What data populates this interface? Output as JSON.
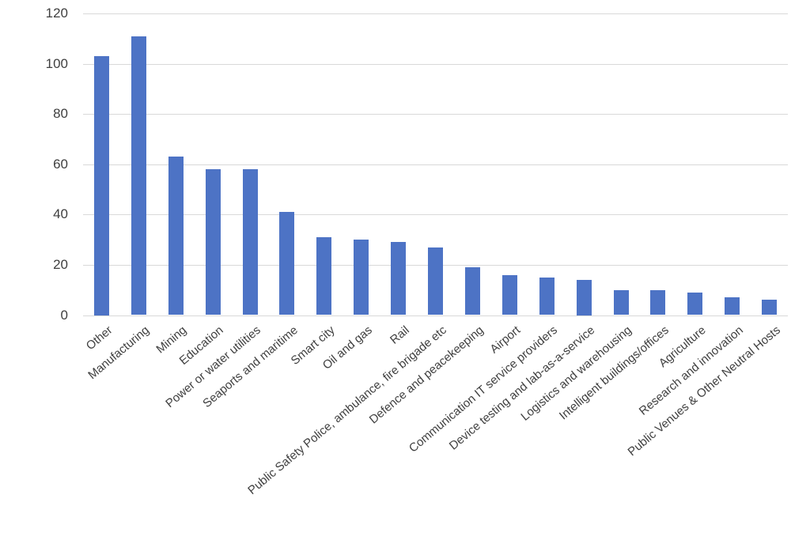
{
  "chart_data": {
    "type": "bar",
    "title": "",
    "xlabel": "",
    "ylabel": "",
    "categories": [
      "Other",
      "Manufacturing",
      "Mining",
      "Education",
      "Power or water utilities",
      "Seaports and maritime",
      "Smart city",
      "Oil and gas",
      "Rail",
      "Public Safety Police, ambulance, fire brigade etc",
      "Defence and peacekeeping",
      "Airport",
      "Communication IT service providers",
      "Device testing and lab-as-a-service",
      "Logistics and warehousing",
      "Intelligent buildings/offices",
      "Agriculture",
      "Research and innovation",
      "Public Venues & Other Neutral Hosts"
    ],
    "values": [
      103,
      111,
      63,
      58,
      58,
      41,
      31,
      30,
      29,
      27,
      19,
      16,
      15,
      14,
      10,
      10,
      9,
      7,
      6
    ],
    "ylim": [
      0,
      120
    ],
    "yticks": [
      0,
      20,
      40,
      60,
      80,
      100,
      120
    ],
    "grid": true,
    "legend": false,
    "bar_color": "#4d73c5",
    "grid_color": "#d9d9d9",
    "text_color": "#3f3f3f",
    "background_color": "#ffffff"
  }
}
